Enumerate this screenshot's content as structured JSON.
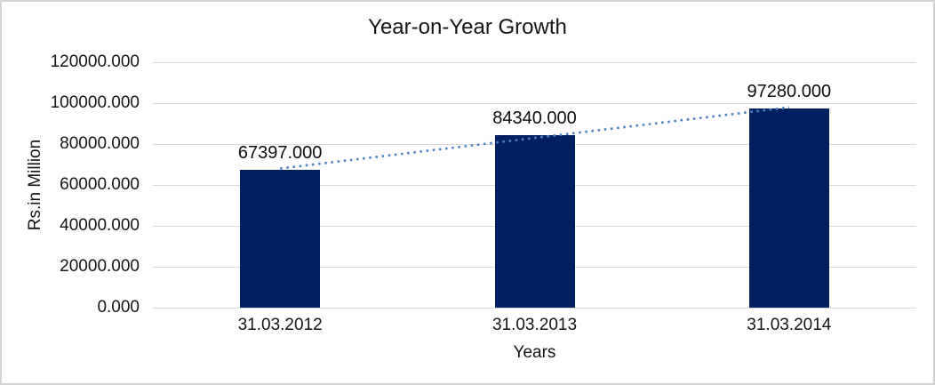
{
  "chart_data": {
    "type": "bar",
    "title": "Year-on-Year Growth",
    "categories": [
      "31.03.2012",
      "31.03.2013",
      "31.03.2014"
    ],
    "values": [
      67397,
      84340,
      97280
    ],
    "data_labels": [
      "67397.000",
      "84340.000",
      "97280.000"
    ],
    "xlabel": "Years",
    "ylabel": "Rs.in Million",
    "ylim": [
      0,
      120000
    ],
    "ytick_interval": 20000,
    "ytick_labels": [
      "0.000",
      "20000.000",
      "40000.000",
      "60000.000",
      "80000.000",
      "100000.000",
      "120000.000"
    ],
    "grid": true,
    "legend": "none",
    "bar_color": "#002060",
    "gridline_color": "#d9d9d9",
    "text_color": "#151515",
    "trendline": {
      "type": "linear",
      "style": "dotted",
      "color": "#4f84c4"
    }
  }
}
